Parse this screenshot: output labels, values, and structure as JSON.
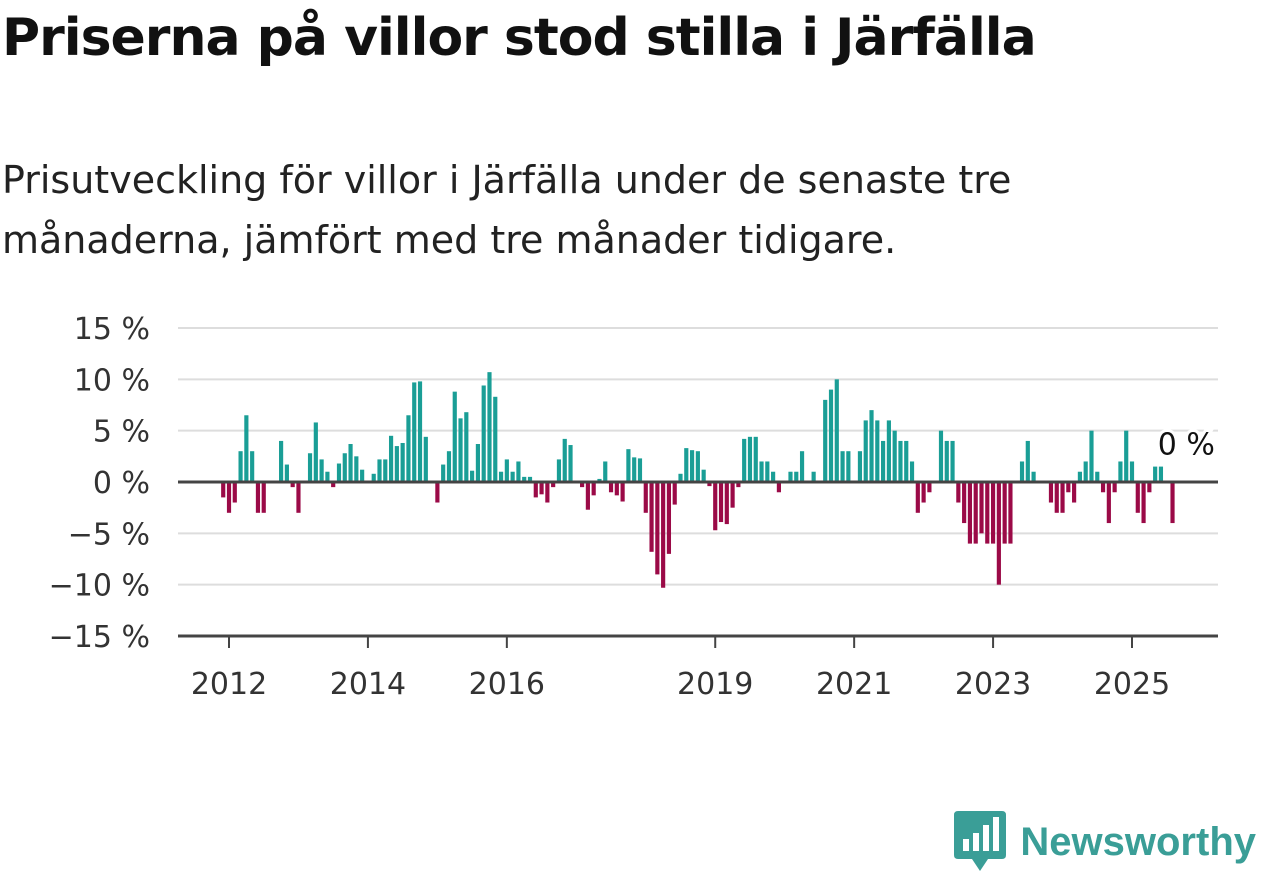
{
  "title": "Priserna på villor stod stilla i Järfälla",
  "subtitle": "Prisutveckling för villor i Järfälla under de senaste tre månaderna, jämfört med tre månader tidigare.",
  "brand": "Newsworthy",
  "colors": {
    "positive": "#1a9e96",
    "negative": "#9b0a47",
    "grid": "#dddddd",
    "axis": "#444444",
    "brand": "#3a9e97"
  },
  "chart_data": {
    "type": "bar",
    "title": "",
    "xlabel": "",
    "ylabel": "",
    "ylim": [
      -15,
      15
    ],
    "y_ticks": [
      "15 %",
      "10 %",
      "5 %",
      "0 %",
      "−5 %",
      "−10 %",
      "−15 %"
    ],
    "x_ticks": [
      "2012",
      "2014",
      "2016",
      "2019",
      "2021",
      "2023",
      "2025"
    ],
    "end_label": "0 %",
    "grid": true,
    "start": "2011-12",
    "frequency": "monthly",
    "values": [
      -1.5,
      -3,
      -2,
      3,
      6.5,
      3,
      -3,
      -3,
      0,
      0,
      4,
      1.7,
      -0.5,
      -3,
      0,
      2.8,
      5.8,
      2.2,
      1,
      -0.5,
      1.8,
      2.8,
      3.7,
      2.5,
      1.2,
      0,
      0.8,
      2.2,
      2.2,
      4.5,
      3.5,
      3.8,
      6.5,
      9.7,
      9.8,
      4.4,
      0,
      -2,
      1.7,
      3,
      8.8,
      6.2,
      6.8,
      1.1,
      3.7,
      9.4,
      10.7,
      8.3,
      1,
      2.2,
      1,
      2,
      0.5,
      0.5,
      -1.5,
      -1.2,
      -2,
      -0.5,
      2.2,
      4.2,
      3.6,
      0,
      -0.5,
      -2.7,
      -1.3,
      0.3,
      2,
      -1,
      -1.3,
      -1.9,
      3.2,
      2.4,
      2.3,
      -3,
      -6.8,
      -9,
      -10.3,
      -7,
      -2.2,
      0.8,
      3.3,
      3.1,
      3,
      1.2,
      -0.4,
      -4.7,
      -3.9,
      -4.1,
      -2.5,
      -0.5,
      4.2,
      4.4,
      4.4,
      2,
      2,
      1,
      -1,
      0,
      1,
      1,
      3,
      0,
      1,
      0,
      8,
      9,
      10,
      3,
      3,
      0,
      3,
      6,
      7,
      6,
      4,
      6,
      5,
      4,
      4,
      2,
      -3,
      -2,
      -1,
      0,
      5,
      4,
      4,
      -2,
      -4,
      -6,
      -6,
      -5,
      -6,
      -6,
      -10,
      -6,
      -6,
      0,
      2,
      4,
      1,
      0,
      0,
      -2,
      -3,
      -3,
      -1,
      -2,
      1,
      2,
      5,
      1,
      -1,
      -4,
      -1,
      2,
      5,
      2,
      -3,
      -4,
      -1,
      1.5,
      1.5,
      0,
      -4,
      0
    ]
  }
}
